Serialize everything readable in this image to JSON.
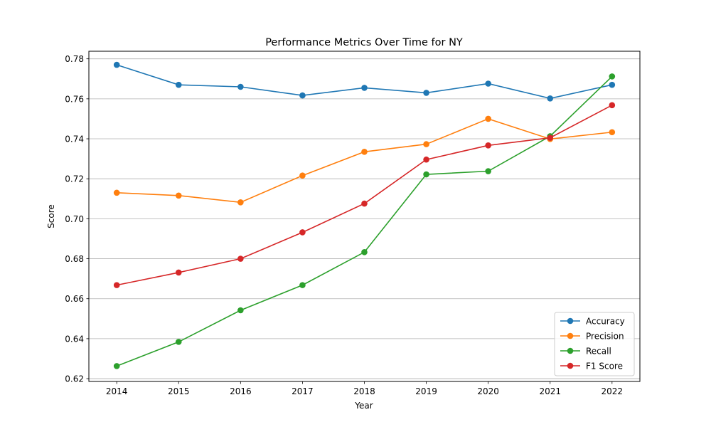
{
  "chart_data": {
    "type": "line",
    "title": "Performance Metrics Over Time for NY",
    "xlabel": "Year",
    "ylabel": "Score",
    "x": [
      2014,
      2015,
      2016,
      2017,
      2018,
      2019,
      2020,
      2021,
      2022
    ],
    "x_ticks": [
      "2014",
      "2015",
      "2016",
      "2017",
      "2018",
      "2019",
      "2020",
      "2021",
      "2022"
    ],
    "ylim": [
      0.6186,
      0.7838
    ],
    "y_ticks": [
      "0.62",
      "0.64",
      "0.66",
      "0.68",
      "0.70",
      "0.72",
      "0.74",
      "0.76",
      "0.78"
    ],
    "grid": "horizontal",
    "legend_position": "bottom-right",
    "series": [
      {
        "name": "Accuracy",
        "color": "#1f77b4",
        "values": [
          0.777,
          0.767,
          0.766,
          0.7617,
          0.7655,
          0.763,
          0.7676,
          0.7602,
          0.767
        ]
      },
      {
        "name": "Precision",
        "color": "#ff7f0e",
        "values": [
          0.713,
          0.7116,
          0.7082,
          0.7216,
          0.7335,
          0.7373,
          0.75,
          0.7399,
          0.7433
        ]
      },
      {
        "name": "Recall",
        "color": "#2ca02c",
        "values": [
          0.6263,
          0.6384,
          0.6542,
          0.6668,
          0.6833,
          0.7222,
          0.7238,
          0.7413,
          0.7712
        ]
      },
      {
        "name": "F1 Score",
        "color": "#d62728",
        "values": [
          0.6668,
          0.6731,
          0.68,
          0.6932,
          0.7076,
          0.7296,
          0.7367,
          0.7405,
          0.7568
        ]
      }
    ]
  }
}
